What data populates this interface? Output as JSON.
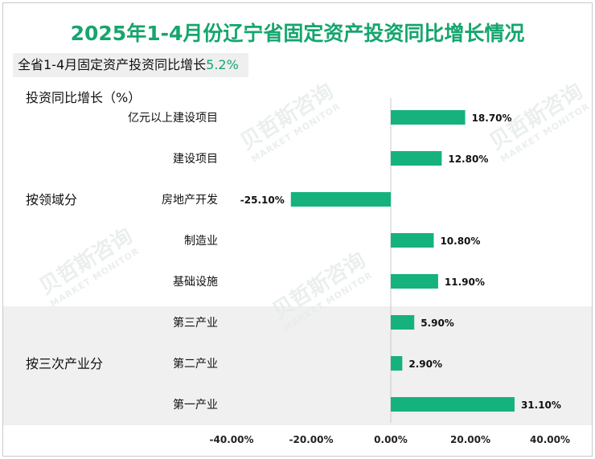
{
  "title": "2025年1-4月份辽宁省固定资产投资同比增长情况",
  "summary": {
    "prefix": "全省1-4月固定资产投资同比增长",
    "value": "5.2%"
  },
  "watermark": {
    "cn": "贝哲斯咨询",
    "en": "MARKET MONITOR"
  },
  "colors": {
    "bar": "#15b27e",
    "title": "#16a56e",
    "group_bg": "#f0f0f0"
  },
  "chart_data": {
    "type": "bar",
    "orientation": "horizontal",
    "ylabel": "投资同比增长（%）",
    "xlim": [
      -40,
      40
    ],
    "x_ticks": [
      -40,
      -20,
      0,
      20,
      40
    ],
    "x_tick_labels": [
      "-40.00%",
      "-20.00%",
      "0.00%",
      "20.00%",
      "40.00%"
    ],
    "groups": [
      {
        "name": "按领域分",
        "categories": [
          "亿元以上建设项目",
          "建设项目",
          "房地产开发",
          "制造业",
          "基础设施"
        ]
      },
      {
        "name": "按三次产业分",
        "categories": [
          "第三产业",
          "第二产业",
          "第一产业"
        ]
      }
    ],
    "categories": [
      "亿元以上建设项目",
      "建设项目",
      "房地产开发",
      "制造业",
      "基础设施",
      "第三产业",
      "第二产业",
      "第一产业"
    ],
    "values": [
      18.7,
      12.8,
      -25.1,
      10.8,
      11.9,
      5.9,
      2.9,
      31.1
    ],
    "value_labels": [
      "18.70%",
      "12.80%",
      "-25.10%",
      "10.80%",
      "11.90%",
      "5.90%",
      "2.90%",
      "31.10%"
    ]
  }
}
